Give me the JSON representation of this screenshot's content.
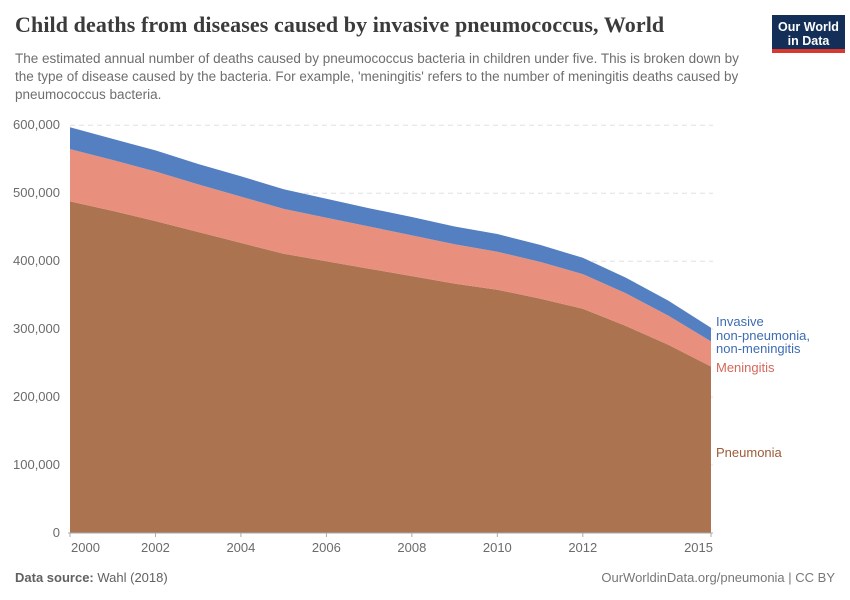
{
  "header": {
    "title": "Child deaths from diseases caused by invasive pneumococcus, World",
    "subtitle": "The estimated annual number of deaths caused by pneumococcus bacteria in children under five. This is broken down by the type of disease caused by the bacteria. For example, 'meningitis' refers to the number of meningitis deaths caused by pneumococcus bacteria.",
    "logo": {
      "line1": "Our World",
      "line2": "in Data",
      "bg": "#132f57",
      "accent": "#d8382e"
    }
  },
  "chart_data": {
    "type": "area",
    "stacked": true,
    "title": "Child deaths from diseases caused by invasive pneumococcus, World",
    "xlabel": "",
    "ylabel": "",
    "xlim": [
      2000,
      2015
    ],
    "ylim": [
      0,
      600000
    ],
    "grid": "dashed-horizontal",
    "legend_position": "right-of-plot",
    "x": [
      2000,
      2001,
      2002,
      2003,
      2004,
      2005,
      2006,
      2007,
      2008,
      2009,
      2010,
      2011,
      2012,
      2013,
      2014,
      2015
    ],
    "series": [
      {
        "name": "Pneumonia",
        "color": "#ac7351",
        "label_color": "#9d5b38",
        "values": [
          488000,
          474000,
          459000,
          443000,
          427000,
          411000,
          400000,
          389000,
          378000,
          367000,
          358000,
          345000,
          330000,
          305000,
          277000,
          245000
        ]
      },
      {
        "name": "Meningitis",
        "color": "#e98f7d",
        "label_color": "#d4685a",
        "values": [
          77000,
          75000,
          73000,
          70000,
          68000,
          66000,
          64000,
          62000,
          60000,
          58000,
          56000,
          54000,
          51000,
          48000,
          43000,
          37000
        ]
      },
      {
        "name": "Invasive non-pneumonia, non-meningitis",
        "color": "#5480c2",
        "label_color": "#3d6cb3",
        "values": [
          32000,
          31000,
          31000,
          30000,
          30000,
          29000,
          28000,
          27000,
          27000,
          26000,
          26000,
          25000,
          24000,
          23000,
          22000,
          20000
        ]
      }
    ],
    "y_ticks": [
      {
        "value": 0,
        "label": "0"
      },
      {
        "value": 100000,
        "label": "100,000"
      },
      {
        "value": 200000,
        "label": "200,000"
      },
      {
        "value": 300000,
        "label": "300,000"
      },
      {
        "value": 400000,
        "label": "400,000"
      },
      {
        "value": 500000,
        "label": "500,000"
      },
      {
        "value": 600000,
        "label": "600,000"
      }
    ],
    "x_ticks": [
      {
        "value": 2000,
        "label": "2000"
      },
      {
        "value": 2002,
        "label": "2002"
      },
      {
        "value": 2004,
        "label": "2004"
      },
      {
        "value": 2006,
        "label": "2006"
      },
      {
        "value": 2008,
        "label": "2008"
      },
      {
        "value": 2010,
        "label": "2010"
      },
      {
        "value": 2012,
        "label": "2012"
      },
      {
        "value": 2015,
        "label": "2015"
      }
    ]
  },
  "series_labels": {
    "invasive": [
      "Invasive",
      "non-pneumonia,",
      "non-meningitis"
    ],
    "meningitis": "Meningitis",
    "pneumonia": "Pneumonia"
  },
  "footer": {
    "source_label": "Data source:",
    "source_value": "Wahl (2018)",
    "credit": "OurWorldinData.org/pneumonia | CC BY"
  },
  "style": {
    "grid_color": "#e0e0e0",
    "axis_color": "#a9a9a9",
    "tick_text_color": "#6b6b6b"
  }
}
